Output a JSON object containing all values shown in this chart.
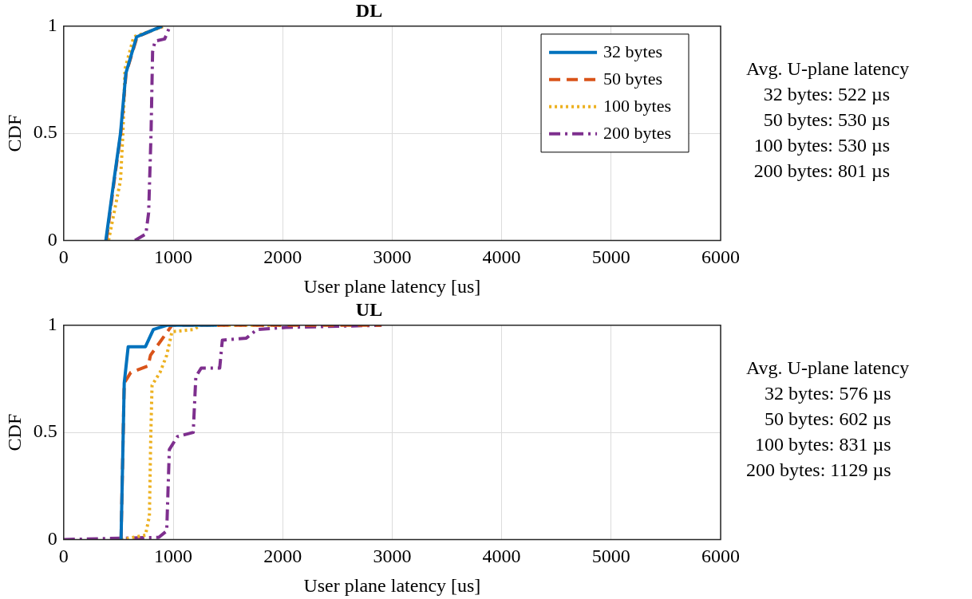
{
  "chart_data": [
    {
      "type": "line",
      "title": "DL",
      "xlabel": "User plane latency [us]",
      "ylabel": "CDF",
      "xlim": [
        0,
        6000
      ],
      "xticks": [
        0,
        1000,
        2000,
        3000,
        4000,
        5000,
        6000
      ],
      "ylim": [
        0,
        1
      ],
      "yticks": [
        0,
        0.5,
        1
      ],
      "grid": true,
      "legend": "top right",
      "marker": "none",
      "series": [
        {
          "name": "32 bytes",
          "color": "#0072bd",
          "line_style": "solid",
          "x": [
            385,
            459,
            519,
            568,
            666,
            898
          ],
          "values": [
            0,
            0.28,
            0.5,
            0.78,
            0.95,
            1
          ]
        },
        {
          "name": "50 bytes",
          "color": "#d95319",
          "line_style": "dashed",
          "x": [
            390,
            462,
            522,
            570,
            670,
            900
          ],
          "values": [
            0,
            0.28,
            0.5,
            0.78,
            0.95,
            1
          ]
        },
        {
          "name": "100 bytes",
          "color": "#edb120",
          "line_style": "dotted",
          "x": [
            410,
            519,
            541,
            560,
            640,
            920
          ],
          "values": [
            0,
            0.28,
            0.5,
            0.8,
            0.95,
            1
          ]
        },
        {
          "name": "200 bytes",
          "color": "#7e2f8e",
          "line_style": "dashdot",
          "x": [
            651,
            751,
            776,
            798,
            812,
            834,
            922,
            971
          ],
          "values": [
            0,
            0.03,
            0.13,
            0.5,
            0.88,
            0.93,
            0.94,
            1
          ]
        }
      ],
      "annotations": [
        "Avg. U-plane latency",
        "32 bytes: 522 µs",
        "50 bytes: 530 µs",
        "100 bytes: 530 µs",
        "200 bytes: 801 µs"
      ]
    },
    {
      "type": "line",
      "title": "UL",
      "xlabel": "User plane latency [us]",
      "ylabel": "CDF",
      "xlim": [
        0,
        6000
      ],
      "xticks": [
        0,
        1000,
        2000,
        3000,
        4000,
        5000,
        6000
      ],
      "ylim": [
        0,
        1
      ],
      "yticks": [
        0,
        0.5,
        1
      ],
      "grid": true,
      "marker": "none",
      "series": [
        {
          "color": "#0072bd",
          "line_style": "solid",
          "x": [
            524,
            553,
            589,
            747,
            819,
            941,
            1400
          ],
          "values": [
            0,
            0.73,
            0.9,
            0.9,
            0.98,
            1,
            1
          ]
        },
        {
          "color": "#d95319",
          "line_style": "dashed",
          "x": [
            524,
            553,
            613,
            771,
            793,
            989,
            2900
          ],
          "values": [
            0,
            0.73,
            0.78,
            0.81,
            0.86,
            1,
            1
          ]
        },
        {
          "color": "#edb120",
          "line_style": "dotted",
          "x": [
            524,
            747,
            783,
            795,
            807,
            880,
            941,
            989,
            1183,
            1256,
            2000
          ],
          "values": [
            0,
            0.02,
            0.11,
            0.47,
            0.72,
            0.78,
            0.86,
            0.97,
            0.98,
            1,
            1
          ]
        },
        {
          "color": "#7e2f8e",
          "line_style": "dashdot",
          "x": [
            0,
            868,
            941,
            965,
            1038,
            1183,
            1207,
            1256,
            1425,
            1449,
            1668,
            1765,
            2031,
            2904
          ],
          "values": [
            0,
            0.01,
            0.04,
            0.42,
            0.48,
            0.5,
            0.76,
            0.8,
            0.8,
            0.93,
            0.94,
            0.98,
            0.99,
            1
          ]
        }
      ],
      "annotations": [
        "Avg. U-plane latency",
        "32 bytes: 576 µs",
        "50 bytes: 602 µs",
        "100 bytes: 831 µs",
        "200 bytes: 1129 µs"
      ]
    }
  ]
}
